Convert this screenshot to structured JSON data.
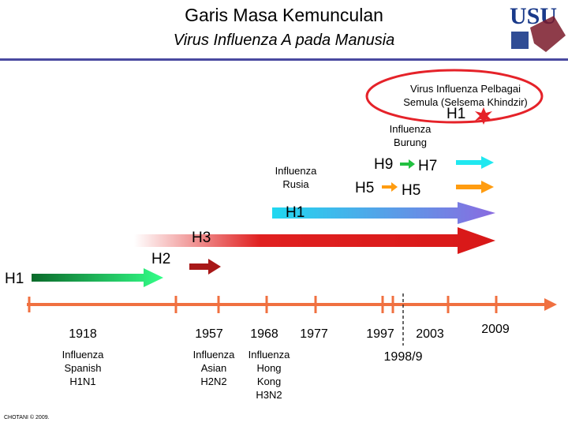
{
  "title": {
    "line1": "Garis Masa Kemunculan",
    "line2": "Virus Influenza A pada Manusia"
  },
  "logo": {
    "text": "USU"
  },
  "labels": {
    "pelbagai": [
      "Virus Influenza Pelbagai",
      "Semula (Selsema Khindzir)"
    ],
    "burung": [
      "Influenza",
      "Burung"
    ],
    "rusia": [
      "Influenza",
      "Rusia"
    ]
  },
  "subtypes": {
    "h1_pandemic": "H1",
    "h9": "H9",
    "h7": "H7",
    "h5a": "H5",
    "h5b": "H5",
    "h1_rusia": "H1",
    "h3": "H3",
    "h2": "H2",
    "h1_spanish": "H1"
  },
  "years": {
    "y1918": "1918",
    "y1957": "1957",
    "y1968": "1968",
    "y1977": "1977",
    "y1997": "1997",
    "y2003": "2003",
    "y19989": "1998/9",
    "y2009": "2009"
  },
  "pandemics": {
    "spanish": [
      "Influenza",
      "Spanish",
      "H1N1"
    ],
    "asian": [
      "Influenza",
      "Asian",
      "H2N2"
    ],
    "hongkong": [
      "Influenza",
      "Hong",
      "Kong",
      "H3N2"
    ]
  },
  "copyright": "CHOTANI © 2009.",
  "colors": {
    "timeline": "#f07040",
    "h1_early": "#0a6a2a",
    "h1_late": "#33ff88",
    "h2": "#a81818",
    "h3_start": "#ffffff",
    "h3_end": "#d81818",
    "h1_rusia_start": "#20d8f0",
    "h1_rusia_end": "#8a6ae0",
    "h7": "#20e8f0",
    "h5": "#ff9c10",
    "oval": "#e52229",
    "rule": "#4a4aa0"
  }
}
